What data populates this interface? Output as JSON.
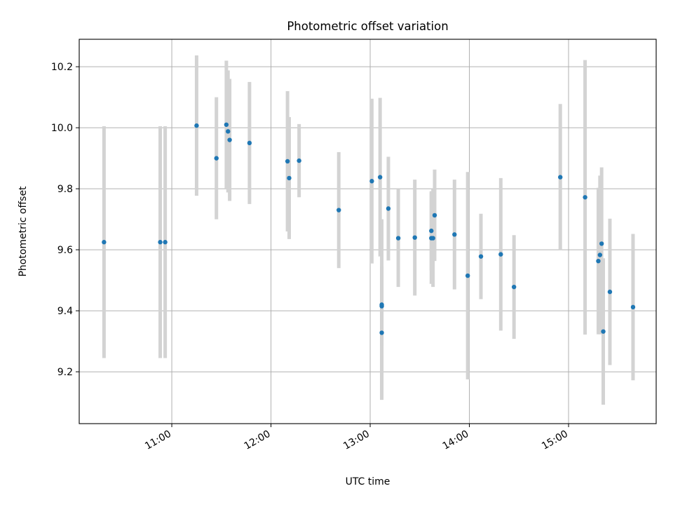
{
  "chart_data": {
    "type": "scatter",
    "title": "Photometric offset variation",
    "xlabel": "UTC time",
    "ylabel": "Photometric offset",
    "x_tick_labels": [
      "11:00",
      "12:00",
      "13:00",
      "14:00",
      "15:00"
    ],
    "y_tick_labels": [
      "9.2",
      "9.4",
      "9.6",
      "9.8",
      "10.0",
      "10.2"
    ],
    "xlim": [
      "10:04",
      "15:53"
    ],
    "ylim": [
      9.03,
      10.29
    ],
    "grid": true,
    "series": [
      {
        "kind": "errorbar",
        "colors": {
          "marker": "#1f77b4",
          "errorbar": "#d3d3d3"
        },
        "points": [
          {
            "x": "10:19",
            "y": 9.625,
            "err": 0.38
          },
          {
            "x": "10:53",
            "y": 9.625,
            "err": 0.38
          },
          {
            "x": "10:56",
            "y": 9.625,
            "err": 0.38
          },
          {
            "x": "11:15",
            "y": 10.007,
            "err": 0.23
          },
          {
            "x": "11:27",
            "y": 9.9,
            "err": 0.2
          },
          {
            "x": "11:33",
            "y": 10.01,
            "err": 0.21
          },
          {
            "x": "11:34",
            "y": 9.988,
            "err": 0.2
          },
          {
            "x": "11:35",
            "y": 9.96,
            "err": 0.2
          },
          {
            "x": "11:47",
            "y": 9.95,
            "err": 0.2
          },
          {
            "x": "12:10",
            "y": 9.89,
            "err": 0.23
          },
          {
            "x": "12:11",
            "y": 9.835,
            "err": 0.2
          },
          {
            "x": "12:17",
            "y": 9.892,
            "err": 0.12
          },
          {
            "x": "12:41",
            "y": 9.73,
            "err": 0.19
          },
          {
            "x": "13:01",
            "y": 9.825,
            "err": 0.27
          },
          {
            "x": "13:06",
            "y": 9.838,
            "err": 0.26
          },
          {
            "x": "13:07",
            "y": 9.42,
            "err": 0.28
          },
          {
            "x": "13:07",
            "y": 9.415,
            "err": 0.13
          },
          {
            "x": "13:07",
            "y": 9.328,
            "err": 0.22
          },
          {
            "x": "13:11",
            "y": 9.735,
            "err": 0.17
          },
          {
            "x": "13:17",
            "y": 9.638,
            "err": 0.16
          },
          {
            "x": "13:27",
            "y": 9.64,
            "err": 0.19
          },
          {
            "x": "13:37",
            "y": 9.638,
            "err": 0.15
          },
          {
            "x": "13:37",
            "y": 9.662,
            "err": 0.13
          },
          {
            "x": "13:38",
            "y": 9.638,
            "err": 0.16
          },
          {
            "x": "13:39",
            "y": 9.713,
            "err": 0.15
          },
          {
            "x": "13:51",
            "y": 9.65,
            "err": 0.18
          },
          {
            "x": "13:59",
            "y": 9.515,
            "err": 0.34
          },
          {
            "x": "14:07",
            "y": 9.578,
            "err": 0.14
          },
          {
            "x": "14:19",
            "y": 9.585,
            "err": 0.25
          },
          {
            "x": "14:27",
            "y": 9.478,
            "err": 0.17
          },
          {
            "x": "14:55",
            "y": 9.838,
            "err": 0.24
          },
          {
            "x": "15:10",
            "y": 9.772,
            "err": 0.45
          },
          {
            "x": "15:18",
            "y": 9.563,
            "err": 0.24
          },
          {
            "x": "15:19",
            "y": 9.583,
            "err": 0.26
          },
          {
            "x": "15:20",
            "y": 9.62,
            "err": 0.25
          },
          {
            "x": "15:21",
            "y": 9.332,
            "err": 0.24
          },
          {
            "x": "15:25",
            "y": 9.462,
            "err": 0.24
          },
          {
            "x": "15:39",
            "y": 9.412,
            "err": 0.24
          }
        ]
      }
    ]
  }
}
